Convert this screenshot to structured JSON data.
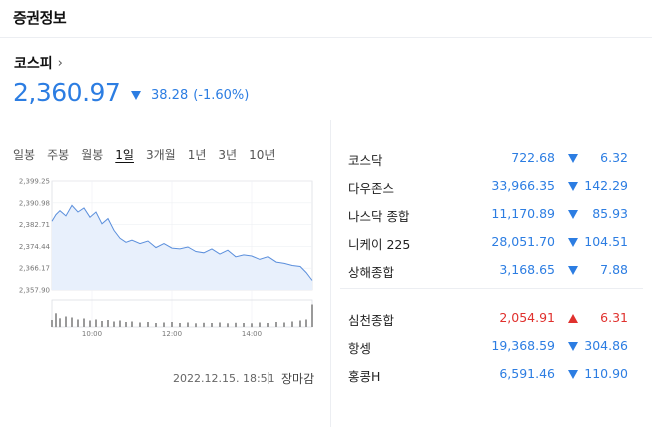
{
  "header": {
    "title": "증권정보"
  },
  "main_index": {
    "name": "코스피",
    "price": "2,360.97",
    "change": "38.28",
    "change_pct": "(-1.60%)",
    "direction": "down"
  },
  "tabs": [
    "일봉",
    "주봉",
    "월봉",
    "1일",
    "3개월",
    "1년",
    "3년",
    "10년"
  ],
  "active_tab": "1일",
  "colors": {
    "down": "#2c7de2",
    "up": "#e0312e",
    "chart_fill": "#e8f0fc",
    "chart_line": "#5b8fdc"
  },
  "chart_data": {
    "type": "area",
    "y_ticks": [
      "2,399.25",
      "2,390.98",
      "2,382.71",
      "2,374.44",
      "2,366.17",
      "2,357.90"
    ],
    "ylim": [
      2357.9,
      2399.25
    ],
    "x_ticks": [
      "10:00",
      "12:00",
      "14:00"
    ],
    "x_tick_hours": [
      10,
      12,
      14
    ],
    "xlim": [
      9,
      15.5
    ],
    "x": [
      9.0,
      9.1,
      9.2,
      9.35,
      9.5,
      9.65,
      9.8,
      9.95,
      10.1,
      10.25,
      10.4,
      10.55,
      10.7,
      10.85,
      11.0,
      11.2,
      11.4,
      11.6,
      11.8,
      12.0,
      12.2,
      12.4,
      12.6,
      12.8,
      13.0,
      13.2,
      13.4,
      13.6,
      13.8,
      14.0,
      14.2,
      14.4,
      14.6,
      14.8,
      15.0,
      15.2,
      15.35,
      15.5
    ],
    "values": [
      2384.0,
      2386.5,
      2388.0,
      2386.0,
      2390.0,
      2387.5,
      2389.0,
      2385.5,
      2387.5,
      2383.0,
      2385.0,
      2380.5,
      2377.5,
      2376.0,
      2376.8,
      2375.5,
      2376.5,
      2374.0,
      2375.5,
      2373.8,
      2373.5,
      2374.2,
      2372.5,
      2372.0,
      2373.5,
      2371.5,
      2373.0,
      2370.5,
      2371.2,
      2370.8,
      2369.5,
      2370.5,
      2368.5,
      2368.0,
      2367.2,
      2366.8,
      2364.5,
      2361.5
    ],
    "volume": [
      0.28,
      0.55,
      0.35,
      0.42,
      0.38,
      0.3,
      0.34,
      0.26,
      0.3,
      0.24,
      0.28,
      0.22,
      0.26,
      0.2,
      0.22,
      0.18,
      0.2,
      0.16,
      0.18,
      0.2,
      0.16,
      0.18,
      0.15,
      0.17,
      0.16,
      0.18,
      0.15,
      0.17,
      0.16,
      0.15,
      0.18,
      0.16,
      0.2,
      0.18,
      0.22,
      0.26,
      0.3,
      0.9
    ]
  },
  "timestamp": "2022.12.15. 18:51",
  "market_status": "장마감",
  "world_indices": [
    {
      "name": "코스닥",
      "price": "722.68",
      "change": "6.32",
      "direction": "down"
    },
    {
      "name": "다우존스",
      "price": "33,966.35",
      "change": "142.29",
      "direction": "down"
    },
    {
      "name": "나스닥 종합",
      "price": "11,170.89",
      "change": "85.93",
      "direction": "down"
    },
    {
      "name": "니케이 225",
      "price": "28,051.70",
      "change": "104.51",
      "direction": "down"
    },
    {
      "name": "상해종합",
      "price": "3,168.65",
      "change": "7.88",
      "direction": "down"
    }
  ],
  "asia_indices": [
    {
      "name": "심천종합",
      "price": "2,054.91",
      "change": "6.31",
      "direction": "up"
    },
    {
      "name": "항셍",
      "price": "19,368.59",
      "change": "304.86",
      "direction": "down"
    },
    {
      "name": "홍콩H",
      "price": "6,591.46",
      "change": "110.90",
      "direction": "down"
    }
  ]
}
